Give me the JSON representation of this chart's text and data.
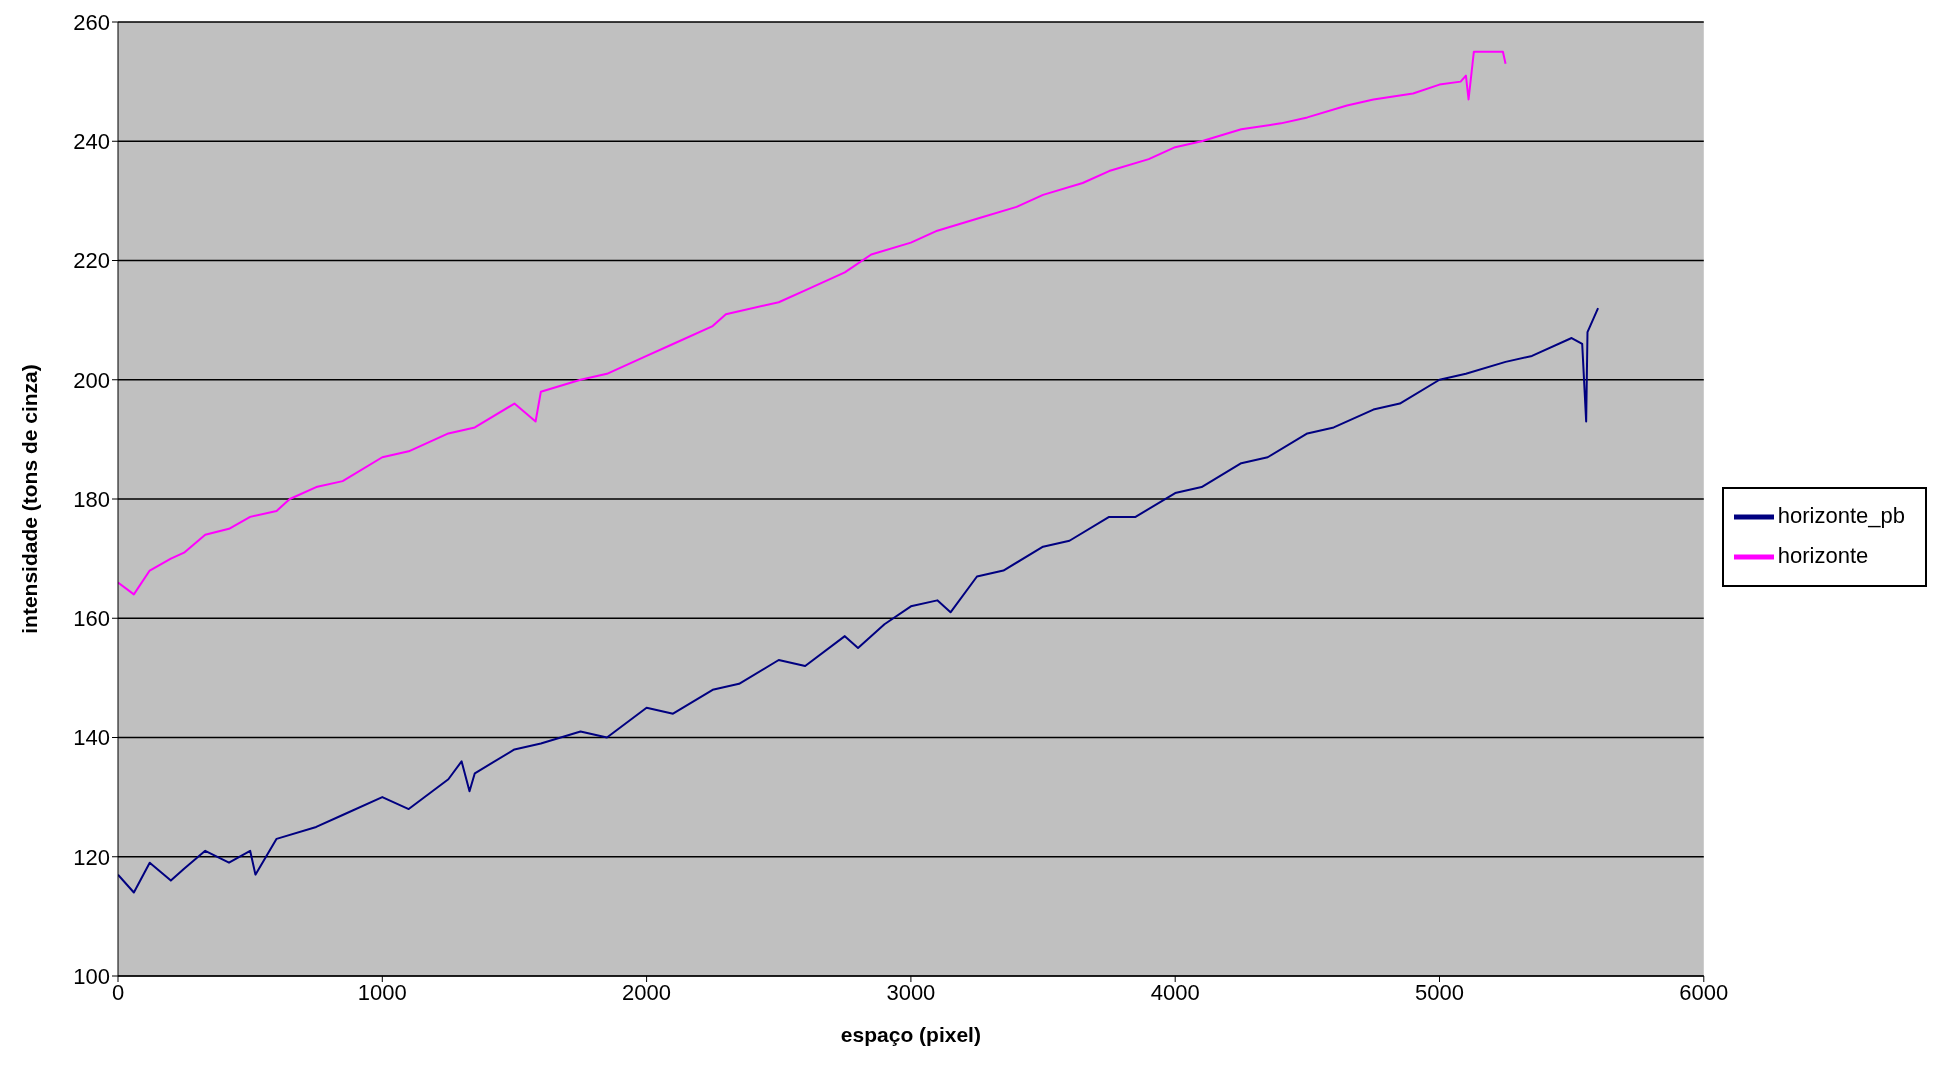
{
  "chart_data": {
    "type": "line",
    "xlabel": "espaço (pixel)",
    "ylabel": "intensidade (tons de cinza)",
    "xlim": [
      0,
      6000
    ],
    "xticks": [
      0,
      1000,
      2000,
      3000,
      4000,
      5000,
      6000
    ],
    "ylim": [
      100,
      260
    ],
    "yticks": [
      100,
      120,
      140,
      160,
      180,
      200,
      220,
      240,
      260
    ],
    "grid": "y",
    "legend": "right",
    "series": [
      {
        "name": "horizonte_pb",
        "color": "#000080",
        "x": [
          0,
          60,
          120,
          200,
          250,
          330,
          420,
          500,
          520,
          600,
          750,
          850,
          1000,
          1100,
          1250,
          1300,
          1330,
          1350,
          1500,
          1600,
          1750,
          1850,
          2000,
          2100,
          2250,
          2350,
          2500,
          2600,
          2750,
          2800,
          2900,
          3000,
          3100,
          3150,
          3250,
          3350,
          3500,
          3600,
          3750,
          3850,
          4000,
          4100,
          4250,
          4350,
          4500,
          4600,
          4750,
          4850,
          5000,
          5100,
          5250,
          5350,
          5500,
          5540,
          5555,
          5560,
          5570,
          5600
        ],
        "values": [
          117,
          114,
          119,
          116,
          118,
          121,
          119,
          121,
          117,
          123,
          125,
          127,
          130,
          128,
          133,
          136,
          131,
          134,
          138,
          139,
          141,
          140,
          145,
          144,
          148,
          149,
          153,
          152,
          157,
          155,
          159,
          162,
          163,
          161,
          167,
          168,
          172,
          173,
          177,
          177,
          181,
          182,
          186,
          187,
          191,
          192,
          195,
          196,
          200,
          201,
          203,
          204,
          207,
          206,
          193,
          208,
          209,
          212
        ]
      },
      {
        "name": "horizonte",
        "color": "#ff00ff",
        "x": [
          0,
          60,
          120,
          200,
          250,
          330,
          420,
          500,
          600,
          650,
          750,
          850,
          1000,
          1100,
          1250,
          1350,
          1500,
          1580,
          1600,
          1750,
          1850,
          2000,
          2100,
          2250,
          2300,
          2500,
          2600,
          2750,
          2850,
          3000,
          3100,
          3250,
          3400,
          3500,
          3650,
          3750,
          3900,
          4000,
          4100,
          4250,
          4400,
          4500,
          4650,
          4750,
          4900,
          5000,
          5080,
          5100,
          5110,
          5130,
          5180,
          5240,
          5250
        ],
        "values": [
          166,
          164,
          168,
          170,
          171,
          174,
          175,
          177,
          178,
          180,
          182,
          183,
          187,
          188,
          191,
          192,
          196,
          193,
          198,
          200,
          201,
          204,
          206,
          209,
          211,
          213,
          215,
          218,
          221,
          223,
          225,
          227,
          229,
          231,
          233,
          235,
          237,
          239,
          240,
          242,
          243,
          244,
          246,
          247,
          248,
          249.5,
          250,
          251,
          247,
          255,
          255,
          255,
          253
        ]
      }
    ]
  }
}
